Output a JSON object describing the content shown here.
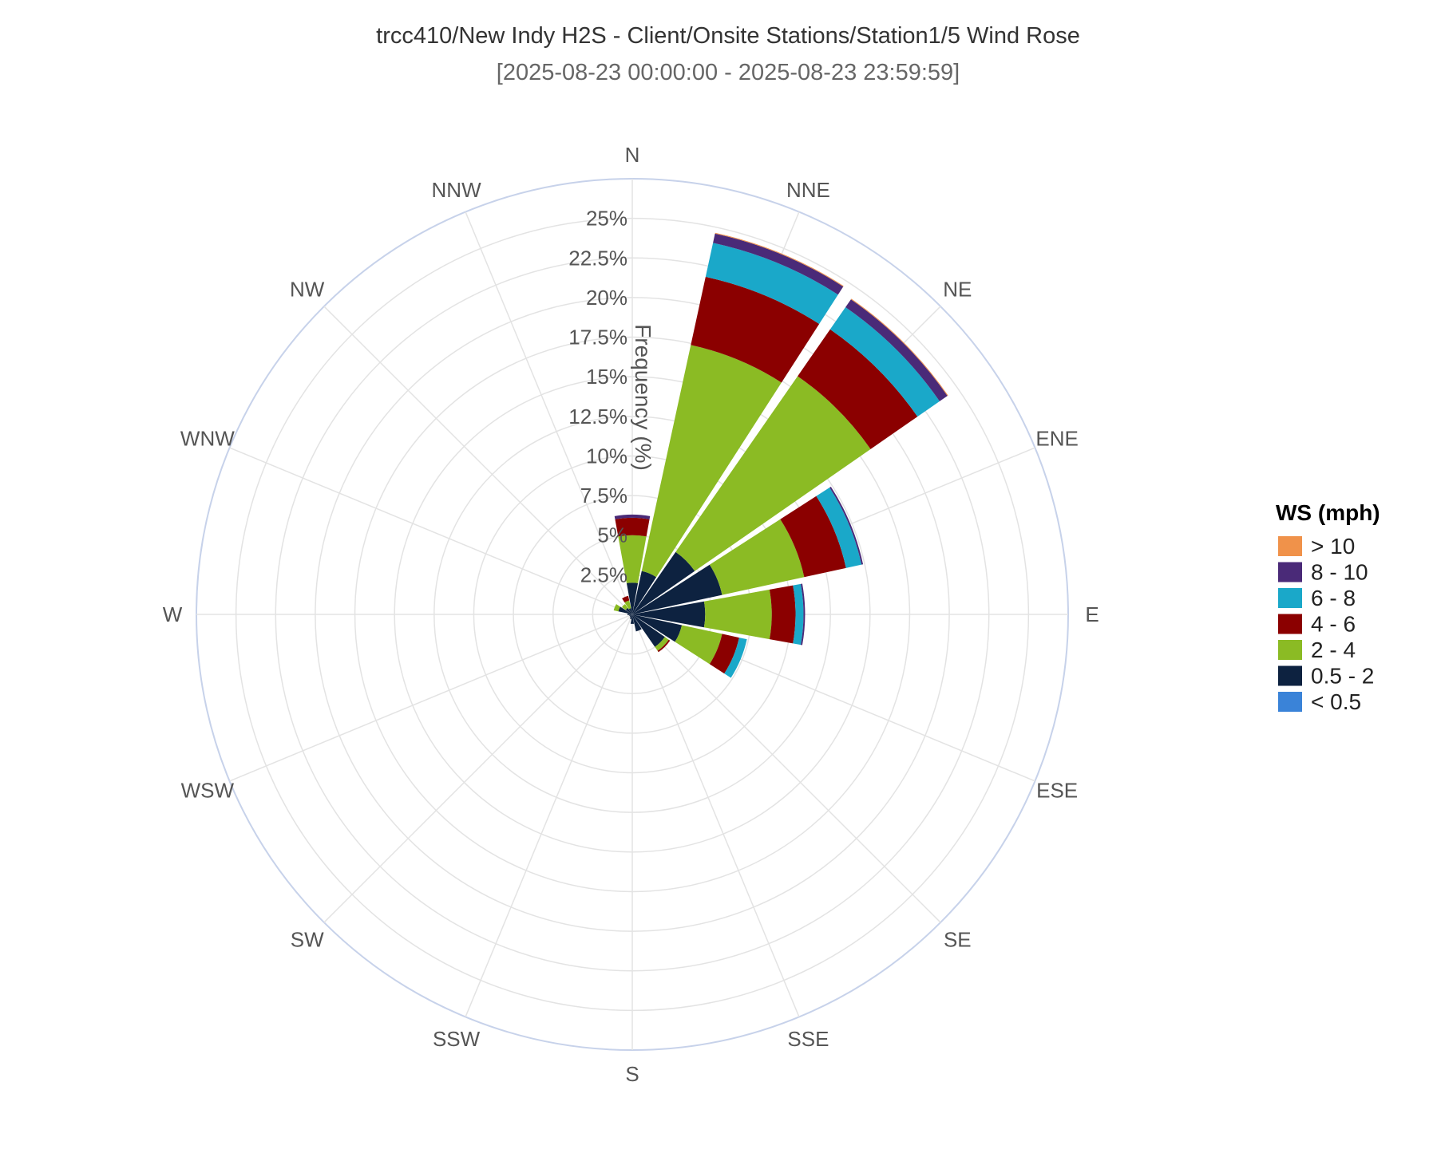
{
  "chart_data": {
    "type": "wind-rose",
    "title": "trcc410/New Indy H2S - Client/Onsite Stations/Station1/5 Wind Rose",
    "subtitle": "[2025-08-23 00:00:00 - 2025-08-23 23:59:59]",
    "radial_axis_title": "Frequency (%)",
    "radial_ticks": [
      "2.5%",
      "5%",
      "7.5%",
      "10%",
      "12.5%",
      "15%",
      "17.5%",
      "20%",
      "22.5%",
      "25%"
    ],
    "radial_tick_values": [
      2.5,
      5,
      7.5,
      10,
      12.5,
      15,
      17.5,
      20,
      22.5,
      25
    ],
    "radial_max": 27.5,
    "directions": [
      "N",
      "NNE",
      "NE",
      "ENE",
      "E",
      "ESE",
      "SE",
      "SSE",
      "S",
      "SSW",
      "SW",
      "WSW",
      "W",
      "WNW",
      "NW",
      "NNW"
    ],
    "legend_title": "WS (mph)",
    "series": [
      {
        "name": "< 0.5",
        "color": "#3a83d8",
        "values": [
          0,
          0,
          0,
          0,
          0,
          0,
          0,
          0,
          0,
          0,
          0,
          0,
          0,
          0,
          0,
          0
        ]
      },
      {
        "name": "0.5 - 2",
        "color": "#0d2240",
        "values": [
          2.0,
          2.8,
          4.8,
          5.8,
          4.6,
          3.2,
          2.5,
          1.1,
          0.6,
          0.3,
          0.2,
          0.2,
          0.3,
          0.9,
          0.5,
          0.4
        ]
      },
      {
        "name": "2 - 4",
        "color": "#8bbb24",
        "values": [
          3.0,
          14.6,
          13.5,
          5.3,
          4.2,
          2.6,
          0.3,
          0,
          0,
          0,
          0,
          0,
          0,
          0.3,
          0.3,
          0.5
        ]
      },
      {
        "name": "4 - 6",
        "color": "#8b0000",
        "values": [
          1.1,
          4.4,
          3.6,
          2.7,
          1.5,
          1.1,
          0.1,
          0,
          0,
          0,
          0,
          0,
          0,
          0,
          0,
          0.3
        ]
      },
      {
        "name": "6 - 8",
        "color": "#1aa8c9",
        "values": [
          0,
          2.2,
          1.7,
          1.0,
          0.5,
          0.5,
          0,
          0,
          0,
          0,
          0,
          0,
          0,
          0,
          0,
          0
        ]
      },
      {
        "name": "8 - 10",
        "color": "#4a2a78",
        "values": [
          0.2,
          0.6,
          0.6,
          0.1,
          0.1,
          0,
          0,
          0,
          0,
          0,
          0,
          0,
          0,
          0,
          0,
          0
        ]
      },
      {
        "name": "> 10",
        "color": "#f0924a",
        "values": [
          0,
          0.05,
          0.05,
          0,
          0,
          0,
          0,
          0,
          0,
          0,
          0,
          0,
          0,
          0,
          0,
          0
        ]
      }
    ],
    "grid": true,
    "legend_position": "right"
  }
}
